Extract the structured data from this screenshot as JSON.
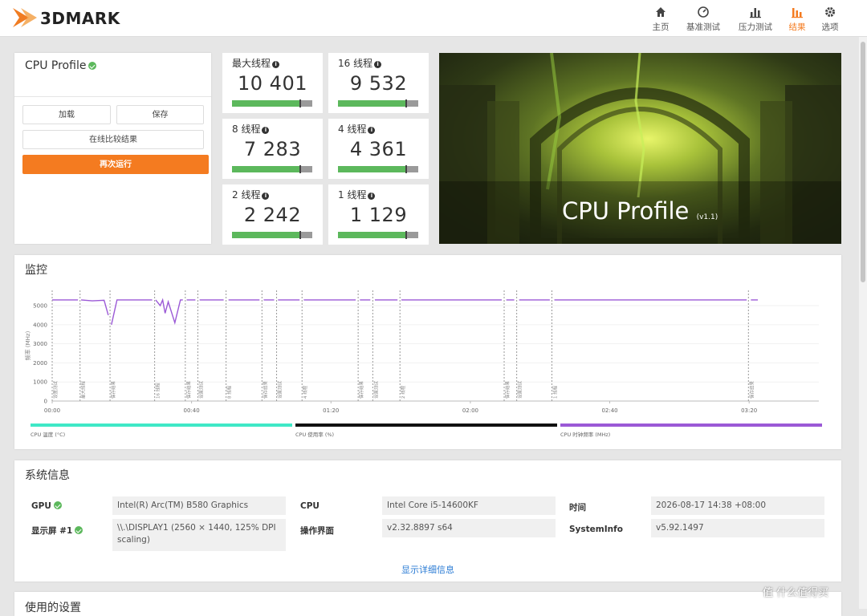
{
  "header": {
    "logo": "3DMARK",
    "nav": [
      "主页",
      "基准测试",
      "压力测试",
      "结果",
      "选项"
    ],
    "active_nav": 3
  },
  "summary": {
    "title": "CPU Profile",
    "buttons": [
      "加载",
      "保存",
      "在线比较结果",
      "再次运行"
    ]
  },
  "scores": [
    {
      "label": "最大线程",
      "value": "10 401"
    },
    {
      "label": "16 线程",
      "value": "9 532"
    },
    {
      "label": "8 线程",
      "value": "7 283"
    },
    {
      "label": "4 线程",
      "value": "4 361"
    },
    {
      "label": "2 线程",
      "value": "2 242"
    },
    {
      "label": "1 线程",
      "value": "1 129"
    }
  ],
  "banner": {
    "title": "CPU Profile",
    "version": "(v1.1)"
  },
  "chart_data": {
    "type": "line",
    "title": "监控",
    "y_label": "频率 (MHz)",
    "xlim": [
      0,
      220
    ],
    "ylim": [
      0,
      5800
    ],
    "xticks": [
      {
        "value": 0,
        "label": "00:00"
      },
      {
        "value": 40,
        "label": "00:40"
      },
      {
        "value": 80,
        "label": "01:20"
      },
      {
        "value": 120,
        "label": "02:00"
      },
      {
        "value": 160,
        "label": "02:40"
      },
      {
        "value": 200,
        "label": "03:20"
      }
    ],
    "yticks": [
      0,
      1000,
      2000,
      3000,
      4000,
      5000
    ],
    "grid": true,
    "markers": [
      {
        "x": 0,
        "label": "设置测试"
      },
      {
        "x": 8.0,
        "label": "最大线程"
      },
      {
        "x": 16.6,
        "label": "保存结果"
      },
      {
        "x": 29.4,
        "label": "16 线程"
      },
      {
        "x": 38.2,
        "label": "保存结果"
      },
      {
        "x": 41.8,
        "label": "设置测试"
      },
      {
        "x": 49.9,
        "label": "8 线程"
      },
      {
        "x": 60.2,
        "label": "保存结果"
      },
      {
        "x": 64.4,
        "label": "设置测试"
      },
      {
        "x": 71.7,
        "label": "4 线程"
      },
      {
        "x": 87.8,
        "label": "保存结果"
      },
      {
        "x": 92.0,
        "label": "设置测试"
      },
      {
        "x": 99.8,
        "label": "2 线程"
      },
      {
        "x": 129.7,
        "label": "保存结果"
      },
      {
        "x": 133.3,
        "label": "设置测试"
      },
      {
        "x": 143.4,
        "label": "1 线程"
      },
      {
        "x": 199.8,
        "label": "保存结果"
      }
    ],
    "legend": [
      {
        "name": "CPU 温度 (°C)",
        "color": "#3fe8c6"
      },
      {
        "name": "CPU 使用率 (%)",
        "color": "#111111"
      }
    ],
    "x": [
      0,
      7.4,
      7.8,
      8.3,
      11.5,
      14.9,
      16.1,
      16.5,
      17.0,
      18.6,
      28.7,
      29.2,
      29.7,
      31.0,
      31.7,
      32.4,
      33.3,
      35.2,
      36.8,
      37.5,
      38.0,
      38.6,
      41.1,
      41.7,
      42.3,
      49.2,
      49.9,
      50.6,
      59.5,
      60.1,
      60.7,
      63.7,
      64.2,
      64.8,
      71.0,
      71.6,
      72.2,
      87.1,
      87.7,
      88.3,
      91.3,
      92.0,
      92.6,
      99.1,
      99.6,
      100.2,
      129.0,
      129.6,
      130.3,
      132.6,
      133.3,
      134.0,
      142.8,
      143.4,
      144.1,
      199.3,
      199.9,
      200.5,
      202.5
    ],
    "series": [
      {
        "name": "CPU 时钟频率 (MHz)",
        "color": "#9b59d6",
        "values": [
          5300,
          5300,
          null,
          5300,
          5250,
          5280,
          4500,
          null,
          4000,
          5300,
          5300,
          null,
          5300,
          5000,
          5300,
          4600,
          5200,
          4100,
          5300,
          5300,
          null,
          5300,
          5300,
          null,
          5300,
          5300,
          null,
          5300,
          5300,
          null,
          5300,
          5300,
          null,
          5300,
          5300,
          null,
          5300,
          5300,
          null,
          5300,
          5300,
          null,
          5300,
          5300,
          null,
          5300,
          5300,
          null,
          5300,
          5300,
          null,
          5300,
          5300,
          null,
          5300,
          5300,
          null,
          5300,
          5300
        ]
      }
    ]
  },
  "system_info": {
    "title": "系统信息",
    "items": [
      {
        "label": "GPU",
        "value": "Intel(R) Arc(TM) B580 Graphics",
        "check": true
      },
      {
        "label": "显示屏 #1",
        "value": "\\\\.\\DISPLAY1 (2560 × 1440, 125% DPI scaling)",
        "check": true
      },
      {
        "label": "CPU",
        "value": "Intel Core i5-14600KF",
        "check": false
      },
      {
        "label": "操作界面",
        "value": "v2.32.8897 s64",
        "check": false
      },
      {
        "label": "时间",
        "value": "2026-08-17 14:38 +08:00",
        "check": false
      },
      {
        "label": "SystemInfo",
        "value": "v5.92.1497",
        "check": false
      }
    ],
    "link": "显示详细信息"
  },
  "settings": {
    "title": "使用的设置"
  },
  "watermark": "值 什么值得买"
}
